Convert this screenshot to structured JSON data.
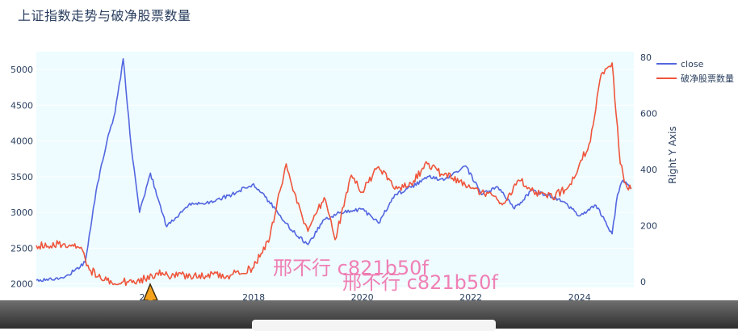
{
  "title": "上证指数走势与破净股票数量",
  "watermarks": [
    "邢不行 c821b50f",
    "邢不行 c821b50f"
  ],
  "chart_data": {
    "type": "line",
    "title": "上证指数走势与破净股票数量",
    "x_ticks": [
      "2018",
      "2020",
      "2022",
      "2024"
    ],
    "first_tick_partial": "20",
    "left_axis": {
      "ticks": [
        2000,
        2500,
        3000,
        3500,
        4000,
        4500,
        5000
      ],
      "range": [
        1950,
        5250
      ]
    },
    "right_axis": {
      "title": "Right Y Axis",
      "ticks": [
        0,
        200,
        400,
        600,
        800
      ],
      "display_ticks": [
        "0",
        "200",
        "400",
        "600",
        "80"
      ],
      "range": [
        -20,
        820
      ]
    },
    "legend": {
      "position": "top-right"
    },
    "series": [
      {
        "name": "close",
        "axis": "left",
        "color": "#5366e0",
        "x": [
          2014.0,
          2014.5,
          2014.9,
          2015.1,
          2015.3,
          2015.45,
          2015.6,
          2015.75,
          2015.9,
          2016.1,
          2016.4,
          2016.8,
          2017.2,
          2017.6,
          2018.0,
          2018.4,
          2018.7,
          2019.0,
          2019.3,
          2019.6,
          2020.0,
          2020.3,
          2020.6,
          2020.9,
          2021.2,
          2021.5,
          2021.9,
          2022.2,
          2022.5,
          2022.8,
          2023.1,
          2023.4,
          2023.7,
          2024.0,
          2024.3,
          2024.6,
          2024.7,
          2024.8,
          2024.95
        ],
        "values": [
          2050,
          2080,
          2300,
          3300,
          4000,
          4400,
          5150,
          3900,
          3000,
          3550,
          2800,
          3100,
          3150,
          3250,
          3400,
          3050,
          2750,
          2550,
          2900,
          3000,
          3050,
          2850,
          3250,
          3350,
          3500,
          3450,
          3650,
          3250,
          3350,
          3050,
          3300,
          3250,
          3150,
          2950,
          3100,
          2700,
          3250,
          3450,
          3350
        ]
      },
      {
        "name": "破净股票数量",
        "axis": "right",
        "color": "#ef553b",
        "x": [
          2014.0,
          2014.5,
          2014.8,
          2015.0,
          2015.3,
          2015.6,
          2016.0,
          2016.2,
          2016.6,
          2017.0,
          2017.5,
          2018.0,
          2018.3,
          2018.6,
          2018.8,
          2019.0,
          2019.3,
          2019.5,
          2019.8,
          2020.0,
          2020.3,
          2020.6,
          2020.9,
          2021.2,
          2021.5,
          2021.8,
          2022.2,
          2022.6,
          2022.9,
          2023.2,
          2023.5,
          2023.8,
          2024.0,
          2024.2,
          2024.4,
          2024.6,
          2024.75,
          2024.85,
          2024.95
        ],
        "values": [
          130,
          135,
          120,
          40,
          5,
          0,
          10,
          30,
          20,
          25,
          20,
          50,
          160,
          420,
          280,
          180,
          300,
          150,
          380,
          320,
          410,
          330,
          350,
          420,
          380,
          360,
          320,
          280,
          360,
          320,
          300,
          340,
          420,
          500,
          740,
          780,
          420,
          350,
          330
        ]
      }
    ]
  }
}
